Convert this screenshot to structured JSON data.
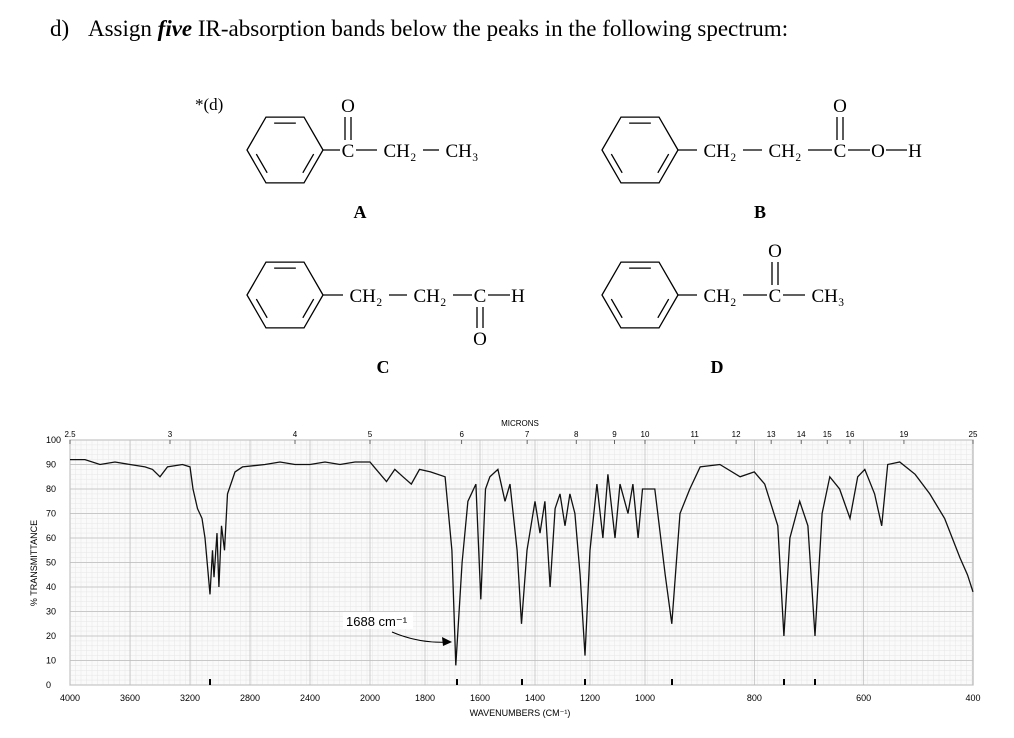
{
  "question": {
    "label": "d)",
    "before": "Assign",
    "emphasis": "five",
    "after": "IR-absorption bands below the peaks in the following spectrum:"
  },
  "part": "*(d)",
  "structures": [
    {
      "label": "A",
      "oxygen": "O",
      "groups": [
        "C",
        "CH₂",
        "CH₃"
      ]
    },
    {
      "label": "B",
      "oxygen": "O",
      "groups": [
        "CH₂",
        "CH₂",
        "C",
        "O",
        "H"
      ]
    },
    {
      "label": "C",
      "oxygen": "O",
      "groups": [
        "CH₂",
        "CH₂",
        "C",
        "H"
      ]
    },
    {
      "label": "D",
      "oxygen": "O",
      "groups": [
        "CH₂",
        "C",
        "CH₃"
      ]
    }
  ],
  "chart_data": {
    "type": "line",
    "xlabel": "WAVENUMBERS (CM⁻¹)",
    "ylabel": "% TRANSMITTANCE",
    "x2label": "MICRONS",
    "annotation": "1688 cm⁻¹",
    "color": "#111111",
    "grid": true,
    "xlim": [
      4000,
      400
    ],
    "x_scale_breaks": [
      2000,
      1000
    ],
    "xticks": [
      4000,
      3600,
      3200,
      2800,
      2400,
      2000,
      1800,
      1600,
      1400,
      1200,
      1000,
      800,
      600,
      400
    ],
    "x2ticks": [
      2.5,
      3,
      4,
      5,
      6,
      7,
      8,
      9,
      10,
      11,
      12,
      13,
      14,
      15,
      16,
      19,
      25
    ],
    "ylim": [
      0,
      100
    ],
    "yticks": [
      0,
      10,
      20,
      30,
      40,
      50,
      60,
      70,
      80,
      90,
      100
    ],
    "x": [
      4000,
      3900,
      3800,
      3700,
      3600,
      3500,
      3450,
      3400,
      3350,
      3250,
      3200,
      3180,
      3150,
      3120,
      3100,
      3067,
      3050,
      3040,
      3020,
      3007,
      2990,
      2970,
      2950,
      2900,
      2850,
      2700,
      2600,
      2500,
      2400,
      2300,
      2200,
      2100,
      2000,
      1985,
      1940,
      1910,
      1880,
      1850,
      1820,
      1780,
      1727,
      1702,
      1688,
      1665,
      1644,
      1615,
      1597,
      1580,
      1564,
      1535,
      1509,
      1491,
      1465,
      1449,
      1429,
      1400,
      1382,
      1364,
      1345,
      1327,
      1309,
      1291,
      1273,
      1255,
      1236,
      1218,
      1200,
      1175,
      1153,
      1135,
      1109,
      1091,
      1062,
      1044,
      1025,
      1009,
      982,
      963,
      951,
      936,
      918,
      899,
      863,
      826,
      800,
      781,
      757,
      746,
      735,
      717,
      702,
      689,
      676,
      662,
      644,
      625,
      611,
      598,
      580,
      567,
      556,
      534,
      506,
      479,
      452,
      424,
      410,
      400
    ],
    "values": [
      92,
      92,
      90,
      91,
      90,
      89,
      88,
      85,
      89,
      90,
      89,
      80,
      72,
      68,
      60,
      37,
      55,
      44,
      62,
      40,
      65,
      55,
      78,
      87,
      89,
      90,
      91,
      90,
      90,
      91,
      90,
      91,
      91,
      89,
      83,
      88,
      85,
      82,
      88,
      87,
      85,
      55,
      8,
      50,
      75,
      82,
      35,
      80,
      85,
      88,
      75,
      82,
      55,
      25,
      55,
      75,
      62,
      75,
      40,
      72,
      78,
      65,
      78,
      70,
      45,
      12,
      55,
      82,
      60,
      86,
      60,
      82,
      70,
      82,
      60,
      80,
      80,
      45,
      25,
      70,
      80,
      89,
      90,
      85,
      87,
      82,
      65,
      20,
      60,
      75,
      65,
      20,
      70,
      85,
      80,
      68,
      85,
      88,
      78,
      65,
      90,
      91,
      86,
      78,
      68,
      52,
      45,
      38
    ]
  }
}
